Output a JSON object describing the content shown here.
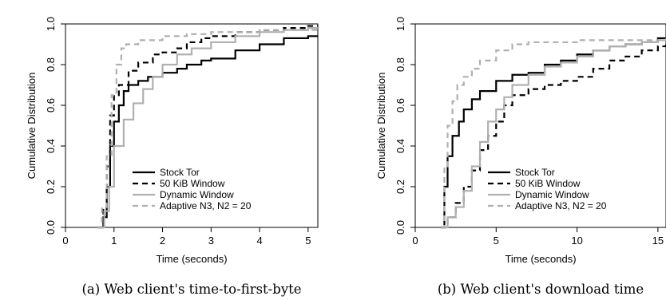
{
  "chart_data": [
    {
      "type": "line",
      "caption": "(a) Web client's time-to-first-byte",
      "xlabel": "Time (seconds)",
      "ylabel": "Cumulative Distribution",
      "xlim": [
        0,
        5.2
      ],
      "ylim": [
        0,
        1
      ],
      "xticks": [
        "0",
        "1",
        "2",
        "3",
        "4",
        "5"
      ],
      "yticks": [
        "0.0",
        "0.2",
        "0.4",
        "0.6",
        "0.8",
        "1.0"
      ],
      "legend_position": "bottom-right",
      "series": [
        {
          "name": "Stock Tor",
          "color": "#000000",
          "dash": "solid",
          "x": [
            0.65,
            0.78,
            0.85,
            0.92,
            1.0,
            1.1,
            1.2,
            1.3,
            1.5,
            1.7,
            2.0,
            2.3,
            2.5,
            2.8,
            3.0,
            3.5,
            4.0,
            4.5,
            5.0,
            5.2
          ],
          "y": [
            0.0,
            0.05,
            0.2,
            0.4,
            0.52,
            0.6,
            0.67,
            0.7,
            0.72,
            0.74,
            0.76,
            0.78,
            0.8,
            0.82,
            0.83,
            0.87,
            0.9,
            0.93,
            0.94,
            0.94
          ]
        },
        {
          "name": "50 KiB Window",
          "color": "#000000",
          "dash": "dashed",
          "x": [
            0.65,
            0.78,
            0.85,
            0.92,
            1.0,
            1.1,
            1.3,
            1.5,
            1.8,
            2.0,
            2.3,
            2.5,
            2.8,
            3.0,
            3.5,
            4.0,
            4.5,
            5.0,
            5.2
          ],
          "y": [
            0.0,
            0.1,
            0.3,
            0.55,
            0.65,
            0.7,
            0.77,
            0.81,
            0.85,
            0.86,
            0.88,
            0.91,
            0.93,
            0.94,
            0.96,
            0.97,
            0.98,
            0.99,
            0.99
          ]
        },
        {
          "name": "Dynamic Window",
          "color": "#b0b0b0",
          "dash": "solid",
          "x": [
            0.65,
            0.8,
            0.9,
            1.0,
            1.2,
            1.4,
            1.6,
            1.8,
            2.0,
            2.3,
            2.6,
            3.0,
            3.5,
            4.0,
            4.5,
            5.0,
            5.2
          ],
          "y": [
            0.0,
            0.08,
            0.2,
            0.4,
            0.53,
            0.61,
            0.68,
            0.74,
            0.8,
            0.85,
            0.88,
            0.91,
            0.94,
            0.96,
            0.97,
            0.98,
            0.98
          ]
        },
        {
          "name": "Adaptive N3, N2 = 20",
          "color": "#b0b0b0",
          "dash": "dashed",
          "x": [
            0.65,
            0.75,
            0.85,
            0.95,
            1.05,
            1.15,
            1.25,
            1.5,
            2.0,
            2.5,
            3.0,
            4.0,
            5.0,
            5.2
          ],
          "y": [
            0.0,
            0.1,
            0.35,
            0.65,
            0.8,
            0.88,
            0.9,
            0.92,
            0.94,
            0.95,
            0.96,
            0.97,
            0.97,
            0.98
          ]
        }
      ]
    },
    {
      "type": "line",
      "caption": "(b) Web client's download time",
      "xlabel": "Time (seconds)",
      "ylabel": "Cumulative Distribution",
      "xlim": [
        0,
        15.5
      ],
      "ylim": [
        0,
        1
      ],
      "xticks": [
        "0",
        "5",
        "10",
        "15"
      ],
      "yticks": [
        "0.0",
        "0.2",
        "0.4",
        "0.6",
        "0.8",
        "1.0"
      ],
      "legend_position": "bottom-right",
      "series": [
        {
          "name": "Stock Tor",
          "color": "#000000",
          "dash": "solid",
          "x": [
            1.6,
            1.8,
            2.0,
            2.3,
            2.7,
            3.0,
            3.5,
            4.0,
            5.0,
            6.0,
            7.0,
            8.0,
            9.0,
            10.0,
            11.0,
            12.0,
            13.0,
            14.0,
            15.0,
            15.5
          ],
          "y": [
            0.0,
            0.2,
            0.35,
            0.45,
            0.52,
            0.58,
            0.63,
            0.67,
            0.72,
            0.75,
            0.76,
            0.8,
            0.82,
            0.85,
            0.87,
            0.89,
            0.9,
            0.91,
            0.93,
            0.93
          ]
        },
        {
          "name": "50 KiB Window",
          "color": "#000000",
          "dash": "dashed",
          "x": [
            1.6,
            2.0,
            2.5,
            3.0,
            3.5,
            4.0,
            4.5,
            5.0,
            5.5,
            6.0,
            7.0,
            8.0,
            9.0,
            10.0,
            11.0,
            12.0,
            13.0,
            14.0,
            15.0,
            15.5
          ],
          "y": [
            0.0,
            0.05,
            0.12,
            0.2,
            0.28,
            0.38,
            0.45,
            0.52,
            0.6,
            0.65,
            0.68,
            0.7,
            0.72,
            0.74,
            0.78,
            0.82,
            0.84,
            0.87,
            0.89,
            0.9
          ]
        },
        {
          "name": "Dynamic Window",
          "color": "#b0b0b0",
          "dash": "solid",
          "x": [
            1.6,
            2.0,
            2.5,
            3.0,
            3.5,
            4.0,
            4.5,
            5.0,
            5.5,
            6.0,
            7.0,
            8.0,
            9.0,
            10.0,
            11.0,
            12.0,
            13.0,
            14.0,
            15.0,
            15.5
          ],
          "y": [
            0.0,
            0.05,
            0.1,
            0.18,
            0.3,
            0.42,
            0.52,
            0.58,
            0.64,
            0.7,
            0.75,
            0.79,
            0.81,
            0.84,
            0.87,
            0.89,
            0.9,
            0.91,
            0.92,
            0.93
          ]
        },
        {
          "name": "Adaptive N3, N2 = 20",
          "color": "#b0b0b0",
          "dash": "dashed",
          "x": [
            1.6,
            1.8,
            2.0,
            2.3,
            2.6,
            3.0,
            3.5,
            4.0,
            5.0,
            6.0,
            7.0,
            8.0,
            10.0,
            12.0,
            14.0,
            15.5
          ],
          "y": [
            0.0,
            0.3,
            0.5,
            0.62,
            0.7,
            0.74,
            0.78,
            0.82,
            0.87,
            0.9,
            0.91,
            0.91,
            0.92,
            0.92,
            0.92,
            0.92
          ]
        }
      ]
    }
  ]
}
